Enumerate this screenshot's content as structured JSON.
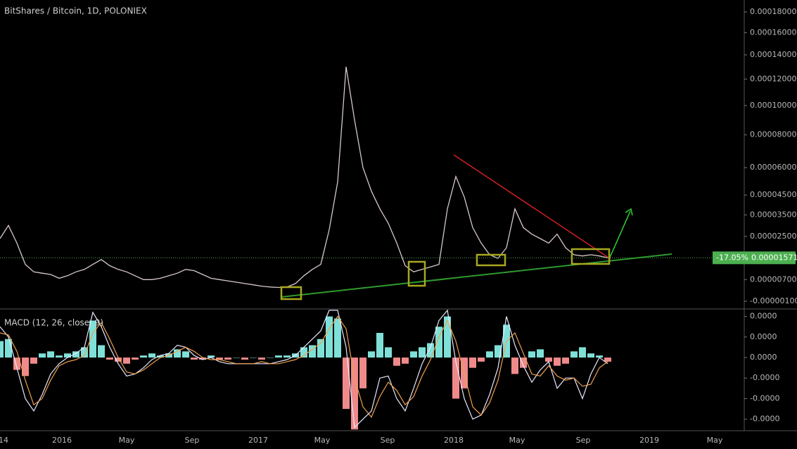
{
  "chart_data": [
    {
      "type": "line",
      "title": "BitShares / Bitcoin, 1D, POLONIEX",
      "color": "#d8c8c8",
      "log_scale": true,
      "values": [
        2.4e-05,
        3e-05,
        2.2e-05,
        1.3e-05,
        1e-05,
        9.5e-06,
        9e-06,
        7.5e-06,
        8.5e-06,
        1e-05,
        1.1e-05,
        1.3e-05,
        1.5e-05,
        1.25e-05,
        1.1e-05,
        1e-05,
        8.5e-06,
        7e-06,
        7e-06,
        7.5e-06,
        8.5e-06,
        9.5e-06,
        1.1e-05,
        1.05e-05,
        9e-06,
        7.5e-06,
        7e-06,
        6.5e-06,
        6e-06,
        5.5e-06,
        5e-06,
        4.5e-06,
        4.2e-06,
        4e-06,
        4.2e-06,
        5.5e-06,
        8.5e-06,
        1.1e-05,
        1.3e-05,
        2.8e-05,
        5.2e-05,
        0.00013,
        9e-05,
        6e-05,
        4.7e-05,
        3.8e-05,
        3.1e-05,
        2.2e-05,
        1.25e-05,
        1e-05,
        1.1e-05,
        1.2e-05,
        1.3e-05,
        3.8e-05,
        5.5e-05,
        4.4e-05,
        2.9e-05,
        2.2e-05,
        1.7e-05,
        1.55e-05,
        2e-05,
        3.8e-05,
        2.9e-05,
        2.6e-05,
        2.4e-05,
        2.2e-05,
        2.6e-05,
        2e-05,
        1.7e-05,
        1.65e-05,
        1.7e-05,
        1.65e-05,
        1.571e-05
      ],
      "ylim": [
        -1e-06,
        0.00018
      ],
      "yticks": [
        {
          "value": 0.00018,
          "label": "0.00018000"
        },
        {
          "value": 0.00016,
          "label": "0.00016000"
        },
        {
          "value": 0.00014,
          "label": "0.00014000"
        },
        {
          "value": 0.00012,
          "label": "0.00012000"
        },
        {
          "value": 0.0001,
          "label": "0.00010000"
        },
        {
          "value": 8e-05,
          "label": "0.00008000"
        },
        {
          "value": 6e-05,
          "label": "0.00006000"
        },
        {
          "value": 4.5e-05,
          "label": "0.00004500"
        },
        {
          "value": 3.5e-05,
          "label": "0.00003500"
        },
        {
          "value": 2.5e-05,
          "label": "0.00002500"
        },
        {
          "value": 7e-06,
          "label": "0.00000700"
        },
        {
          "value": -1e-06,
          "label": "-0.00000100"
        }
      ],
      "last_price": {
        "value": 1.571e-05,
        "label": "0.00001571"
      },
      "change_label": "-17.05%",
      "last_price_color": "#4caf50"
    },
    {
      "type": "macd",
      "title": "MACD (12, 26, close, 9)",
      "series": [
        {
          "kind": "bar",
          "positive_color": "#7fe0d8",
          "negative_color": "#f08a8a",
          "values": [
            8e-07,
            9e-07,
            -6e-07,
            -9e-07,
            -3e-07,
            2e-07,
            3e-07,
            1e-07,
            2e-07,
            3e-07,
            5e-07,
            1.8e-06,
            6e-07,
            -1e-07,
            -2e-07,
            -3e-07,
            -1e-07,
            1e-07,
            2e-07,
            1e-07,
            2e-07,
            4e-07,
            3e-07,
            -1e-07,
            -1e-07,
            1e-07,
            -1e-07,
            -1e-07,
            0,
            -1e-07,
            0,
            -1e-07,
            0,
            1e-07,
            1e-07,
            2e-07,
            5e-07,
            6e-07,
            9e-07,
            2e-06,
            1.9e-06,
            -2.5e-06,
            -3.5e-06,
            -1.5e-06,
            3e-07,
            1.2e-06,
            5e-07,
            -4e-07,
            -3e-07,
            3e-07,
            5e-07,
            7e-07,
            1.5e-06,
            2e-06,
            -2e-06,
            -1.5e-06,
            -5e-07,
            -2e-07,
            3e-07,
            6e-07,
            1.6e-06,
            -8e-07,
            -5e-07,
            3e-07,
            4e-07,
            -2e-07,
            -4e-07,
            -3e-07,
            3e-07,
            5e-07,
            2e-07,
            1e-07,
            -2e-07
          ]
        },
        {
          "kind": "line",
          "color": "#e8e8ff",
          "values": [
            1.5e-06,
            1e-06,
            -5e-07,
            -2e-06,
            -2.6e-06,
            -1.8e-06,
            -8e-07,
            -3e-07,
            0,
            2e-07,
            5e-07,
            2.2e-06,
            1.5e-06,
            5e-07,
            -3e-07,
            -9e-07,
            -8e-07,
            -5e-07,
            -1e-07,
            1e-07,
            2e-07,
            6e-07,
            5e-07,
            1e-07,
            -1e-07,
            0,
            -2e-07,
            -3e-07,
            -3e-07,
            -3e-07,
            -3e-07,
            -3e-07,
            -3e-07,
            -2e-07,
            -1e-07,
            1e-07,
            5e-07,
            9e-07,
            1.3e-06,
            2.3e-06,
            2.3e-06,
            5e-07,
            -3.4e-06,
            -3e-06,
            -2.6e-06,
            -1e-06,
            -9e-07,
            -2e-06,
            -2.6e-06,
            -1.5e-06,
            -3e-07,
            5e-07,
            1.8e-06,
            2.3e-06,
            -2e-07,
            -2e-06,
            -3e-06,
            -2.8e-06,
            -1.8e-06,
            -5e-07,
            2e-06,
            6e-07,
            -4e-07,
            -1.2e-06,
            -6e-07,
            -2e-07,
            -1.5e-06,
            -1e-06,
            -1e-06,
            -2e-06,
            -8e-07,
            0,
            -3e-07
          ]
        },
        {
          "kind": "line",
          "color": "#f0a050",
          "values": [
            1.2e-06,
            1.1e-06,
            3e-07,
            -1.1e-06,
            -2.3e-06,
            -2e-06,
            -1.1e-06,
            -4e-07,
            -2e-07,
            -1e-07,
            1e-07,
            1.2e-06,
            1.7e-06,
            9e-07,
            0,
            -7e-07,
            -8e-07,
            -6e-07,
            -3e-07,
            0,
            1e-07,
            3e-07,
            5e-07,
            3e-07,
            0,
            -1e-07,
            -1e-07,
            -2e-07,
            -3e-07,
            -3e-07,
            -3e-07,
            -2e-07,
            -3e-07,
            -3e-07,
            -2e-07,
            -1e-07,
            1e-07,
            4e-07,
            7e-07,
            1.4e-06,
            2e-06,
            1.4e-06,
            -1e-06,
            -2.4e-06,
            -2.9e-06,
            -1.9e-06,
            -1.2e-06,
            -1.6e-06,
            -2.3e-06,
            -1.9e-06,
            -9e-07,
            -1e-07,
            1e-06,
            1.8e-06,
            8e-07,
            -8e-07,
            -2.4e-06,
            -2.8e-06,
            -2.2e-06,
            -1.1e-06,
            8e-07,
            1.2e-06,
            2e-07,
            -8e-07,
            -9e-07,
            -4e-07,
            -9e-07,
            -1.1e-06,
            -1e-06,
            -1.4e-06,
            -1.3e-06,
            -5e-07,
            -2e-07
          ]
        }
      ],
      "ylim": [
        -3.56e-06,
        2.33e-06
      ],
      "yticks": [
        {
          "value": 2e-06,
          "label": "0.0000"
        },
        {
          "value": 1e-06,
          "label": "0.0000"
        },
        {
          "value": 0,
          "label": "0.0000"
        },
        {
          "value": -1e-06,
          "label": "-0.0000"
        },
        {
          "value": -2e-06,
          "label": "-0.0000"
        },
        {
          "value": -3e-06,
          "label": "-0.0000"
        }
      ]
    }
  ],
  "x_axis": {
    "labels": [
      "14",
      "2016",
      "May",
      "Sep",
      "2017",
      "May",
      "Sep",
      "2018",
      "May",
      "Sep",
      "2019",
      "May"
    ]
  }
}
